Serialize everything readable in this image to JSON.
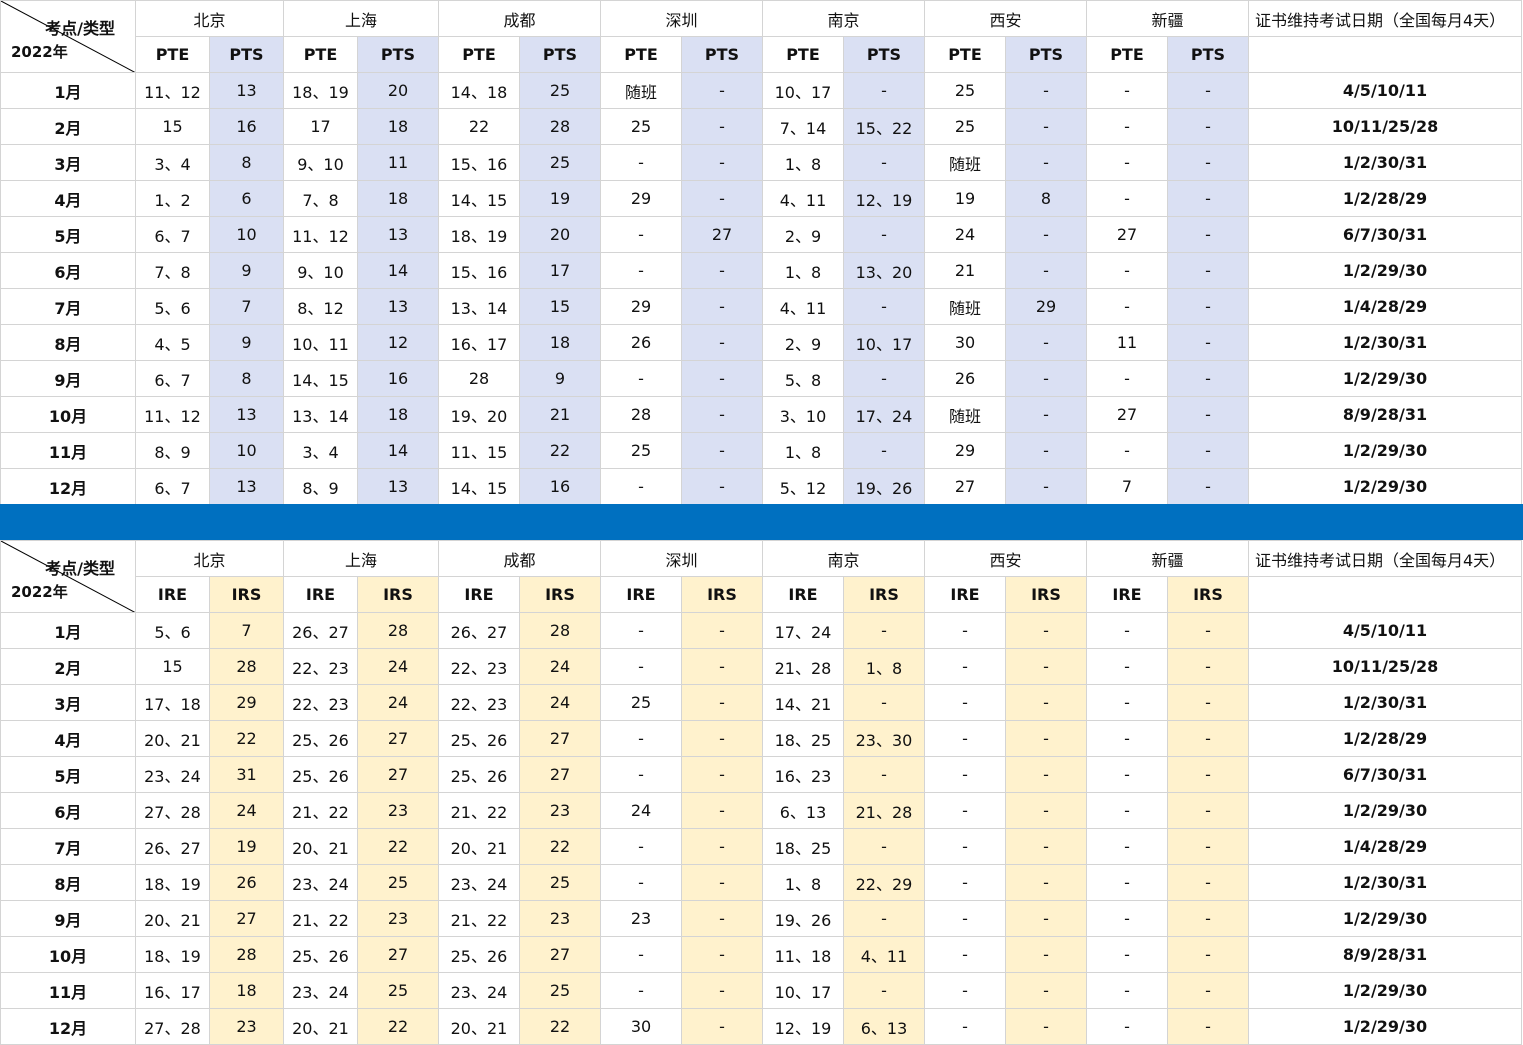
{
  "colors": {
    "divider": "#0070c0",
    "pts_shade": "#dae0f3",
    "irs_shade": "#fff2cd"
  },
  "cities": [
    "北京",
    "上海",
    "成都",
    "深圳",
    "南京",
    "西安",
    "新疆"
  ],
  "corner": {
    "label_type": "考点/类型",
    "label_year": "2022年"
  },
  "cert_header": "证书维持考试日期（全国每月4天）",
  "months": [
    "1月",
    "2月",
    "3月",
    "4月",
    "5月",
    "6月",
    "7月",
    "8月",
    "9月",
    "10月",
    "11月",
    "12月"
  ],
  "cert_dates": [
    "4/5/10/11",
    "10/11/25/28",
    "1/2/30/31",
    "1/2/28/29",
    "6/7/30/31",
    "1/2/29/30",
    "1/4/28/29",
    "1/2/30/31",
    "1/2/29/30",
    "8/9/28/31",
    "1/2/29/30",
    "1/2/29/30"
  ],
  "table_top": {
    "types": [
      "PTE",
      "PTS"
    ],
    "rows": [
      [
        "11、12",
        "13",
        "18、19",
        "20",
        "14、18",
        "25",
        "随班",
        "-",
        "10、17",
        "-",
        "25",
        "-",
        "-",
        "-"
      ],
      [
        "15",
        "16",
        "17",
        "18",
        "22",
        "28",
        "25",
        "-",
        "7、14",
        "15、22",
        "25",
        "-",
        "-",
        "-"
      ],
      [
        "3、4",
        "8",
        "9、10",
        "11",
        "15、16",
        "25",
        "-",
        "-",
        "1、8",
        "-",
        "随班",
        "-",
        "-",
        "-"
      ],
      [
        "1、2",
        "6",
        "7、8",
        "18",
        "14、15",
        "19",
        "29",
        "-",
        "4、11",
        "12、19",
        "19",
        "8",
        "-",
        "-"
      ],
      [
        "6、7",
        "10",
        "11、12",
        "13",
        "18、19",
        "20",
        "-",
        "27",
        "2、9",
        "-",
        "24",
        "-",
        "27",
        "-"
      ],
      [
        "7、8",
        "9",
        "9、10",
        "14",
        "15、16",
        "17",
        "-",
        "-",
        "1、8",
        "13、20",
        "21",
        "-",
        "-",
        "-"
      ],
      [
        "5、6",
        "7",
        "8、12",
        "13",
        "13、14",
        "15",
        "29",
        "-",
        "4、11",
        "-",
        "随班",
        "29",
        "-",
        "-"
      ],
      [
        "4、5",
        "9",
        "10、11",
        "12",
        "16、17",
        "18",
        "26",
        "-",
        "2、9",
        "10、17",
        "30",
        "-",
        "11",
        "-"
      ],
      [
        "6、7",
        "8",
        "14、15",
        "16",
        "28",
        "9",
        "-",
        "-",
        "5、8",
        "-",
        "26",
        "-",
        "-",
        "-"
      ],
      [
        "11、12",
        "13",
        "13、14",
        "18",
        "19、20",
        "21",
        "28",
        "-",
        "3、10",
        "17、24",
        "随班",
        "-",
        "27",
        "-"
      ],
      [
        "8、9",
        "10",
        "3、4",
        "14",
        "11、15",
        "22",
        "25",
        "-",
        "1、8",
        "-",
        "29",
        "-",
        "-",
        "-"
      ],
      [
        "6、7",
        "13",
        "8、9",
        "13",
        "14、15",
        "16",
        "-",
        "-",
        "5、12",
        "19、26",
        "27",
        "-",
        "7",
        "-"
      ]
    ]
  },
  "table_bottom": {
    "types": [
      "IRE",
      "IRS"
    ],
    "rows": [
      [
        "5、6",
        "7",
        "26、27",
        "28",
        "26、27",
        "28",
        "-",
        "-",
        "17、24",
        "-",
        "-",
        "-",
        "-",
        "-"
      ],
      [
        "15",
        "28",
        "22、23",
        "24",
        "22、23",
        "24",
        "-",
        "-",
        "21、28",
        "1、8",
        "-",
        "-",
        "-",
        "-"
      ],
      [
        "17、18",
        "29",
        "22、23",
        "24",
        "22、23",
        "24",
        "25",
        "-",
        "14、21",
        "-",
        "-",
        "-",
        "-",
        "-"
      ],
      [
        "20、21",
        "22",
        "25、26",
        "27",
        "25、26",
        "27",
        "-",
        "-",
        "18、25",
        "23、30",
        "-",
        "-",
        "-",
        "-"
      ],
      [
        "23、24",
        "31",
        "25、26",
        "27",
        "25、26",
        "27",
        "-",
        "-",
        "16、23",
        "-",
        "-",
        "-",
        "-",
        "-"
      ],
      [
        "27、28",
        "24",
        "21、22",
        "23",
        "21、22",
        "23",
        "24",
        "-",
        "6、13",
        "21、28",
        "-",
        "-",
        "-",
        "-"
      ],
      [
        "26、27",
        "19",
        "20、21",
        "22",
        "20、21",
        "22",
        "-",
        "-",
        "18、25",
        "-",
        "-",
        "-",
        "-",
        "-"
      ],
      [
        "18、19",
        "26",
        "23、24",
        "25",
        "23、24",
        "25",
        "-",
        "-",
        "1、8",
        "22、29",
        "-",
        "-",
        "-",
        "-"
      ],
      [
        "20、21",
        "27",
        "21、22",
        "23",
        "21、22",
        "23",
        "23",
        "-",
        "19、26",
        "-",
        "-",
        "-",
        "-",
        "-"
      ],
      [
        "18、19",
        "28",
        "25、26",
        "27",
        "25、26",
        "27",
        "-",
        "-",
        "11、18",
        "4、11",
        "-",
        "-",
        "-",
        "-"
      ],
      [
        "16、17",
        "18",
        "23、24",
        "25",
        "23、24",
        "25",
        "-",
        "-",
        "10、17",
        "-",
        "-",
        "-",
        "-",
        "-"
      ],
      [
        "27、28",
        "23",
        "20、21",
        "22",
        "20、21",
        "22",
        "30",
        "-",
        "12、19",
        "6、13",
        "-",
        "-",
        "-",
        "-"
      ]
    ]
  }
}
